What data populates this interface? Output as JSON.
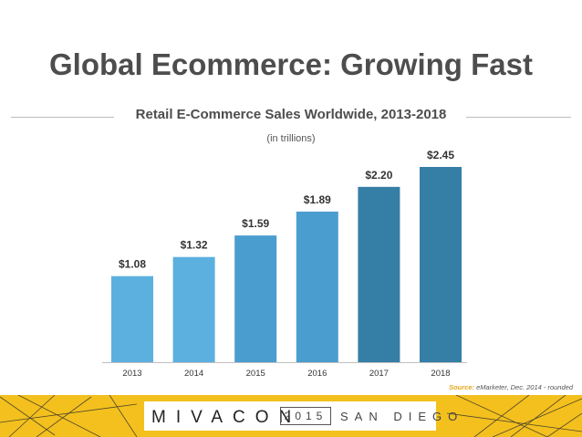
{
  "page": {
    "title": "Global Ecommerce: Growing Fast",
    "subtitle": "Retail E-Commerce Sales Worldwide, 2013-2018",
    "units_note": "(in trillions)",
    "source_label": "Source:",
    "source_text": "eMarketer, Dec. 2014 - rounded"
  },
  "footer": {
    "brand": "MIVACON",
    "year": "2015",
    "city": "SAN DIEGO"
  },
  "colors": {
    "bars": [
      "#5bb0df",
      "#5bb0df",
      "#4a9dcf",
      "#4a9dcf",
      "#357ea6",
      "#357ea6"
    ],
    "accent": "#f3c01e"
  },
  "chart_data": {
    "type": "bar",
    "title": "Retail E-Commerce Sales Worldwide, 2013-2018",
    "subtitle": "(in trillions)",
    "categories": [
      "2013",
      "2014",
      "2015",
      "2016",
      "2017",
      "2018"
    ],
    "values": [
      1.08,
      1.32,
      1.59,
      1.89,
      2.2,
      2.45
    ],
    "data_labels": [
      "$1.08",
      "$1.32",
      "$1.59",
      "$1.89",
      "$2.20",
      "$2.45"
    ],
    "ylim": [
      0,
      2.5
    ],
    "grid": false,
    "legend": "none"
  }
}
